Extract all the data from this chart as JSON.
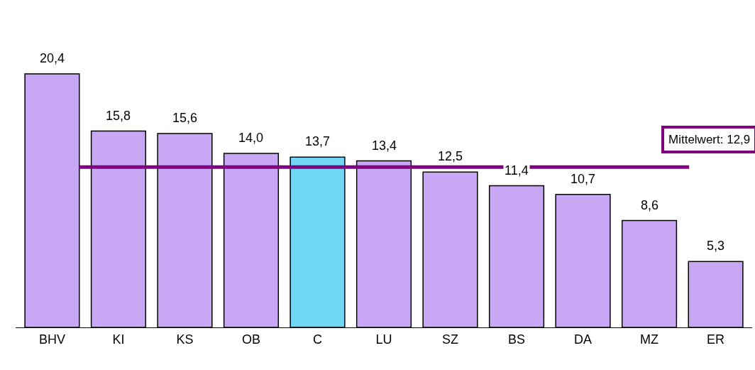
{
  "chart_data": {
    "type": "bar",
    "categories": [
      "BHV",
      "KI",
      "KS",
      "OB",
      "C",
      "LU",
      "SZ",
      "BS",
      "DA",
      "MZ",
      "ER"
    ],
    "values": [
      20.4,
      15.8,
      15.6,
      14.0,
      13.7,
      13.4,
      12.5,
      11.4,
      10.7,
      8.6,
      5.3
    ],
    "value_labels": [
      "20,4",
      "15,8",
      "15,6",
      "14,0",
      "13,7",
      "13,4",
      "12,5",
      "11,4",
      "10,7",
      "8,6",
      "5,3"
    ],
    "colors": [
      "#c8a8f4",
      "#c8a8f4",
      "#c8a8f4",
      "#c8a8f4",
      "#6fd6f4",
      "#c8a8f4",
      "#c8a8f4",
      "#c8a8f4",
      "#c8a8f4",
      "#c8a8f4",
      "#c8a8f4"
    ],
    "ref_lines": [
      {
        "axis": "y",
        "value": 12.9,
        "label": "Mittelwert: 12,9",
        "color": "#800080",
        "line_style": "solid"
      }
    ],
    "legend": false
  }
}
